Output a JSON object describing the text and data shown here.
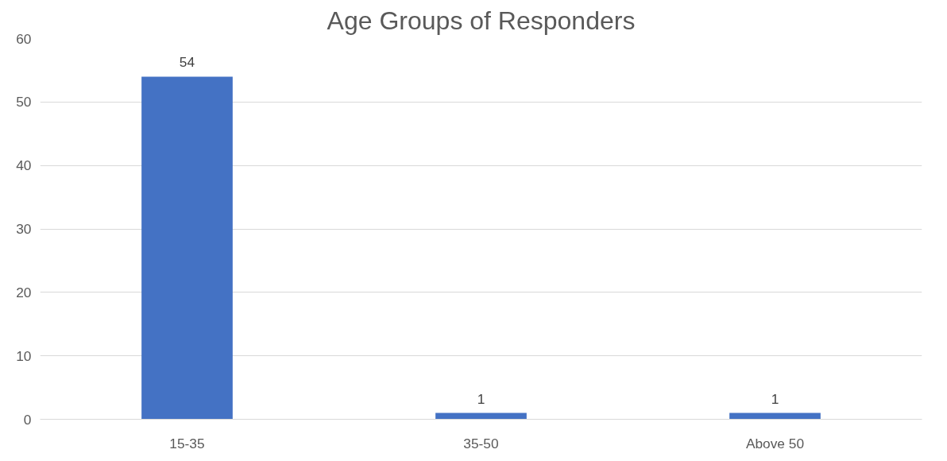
{
  "chart_data": {
    "type": "bar",
    "title": "Age Groups of Responders",
    "categories": [
      "15-35",
      "35-50",
      "Above 50"
    ],
    "values": [
      54,
      1,
      1
    ],
    "color": "#4472c4",
    "ylim": [
      0,
      60
    ],
    "yticks": [
      0,
      10,
      20,
      30,
      40,
      50,
      60
    ],
    "grid": "y",
    "data_labels": true
  }
}
